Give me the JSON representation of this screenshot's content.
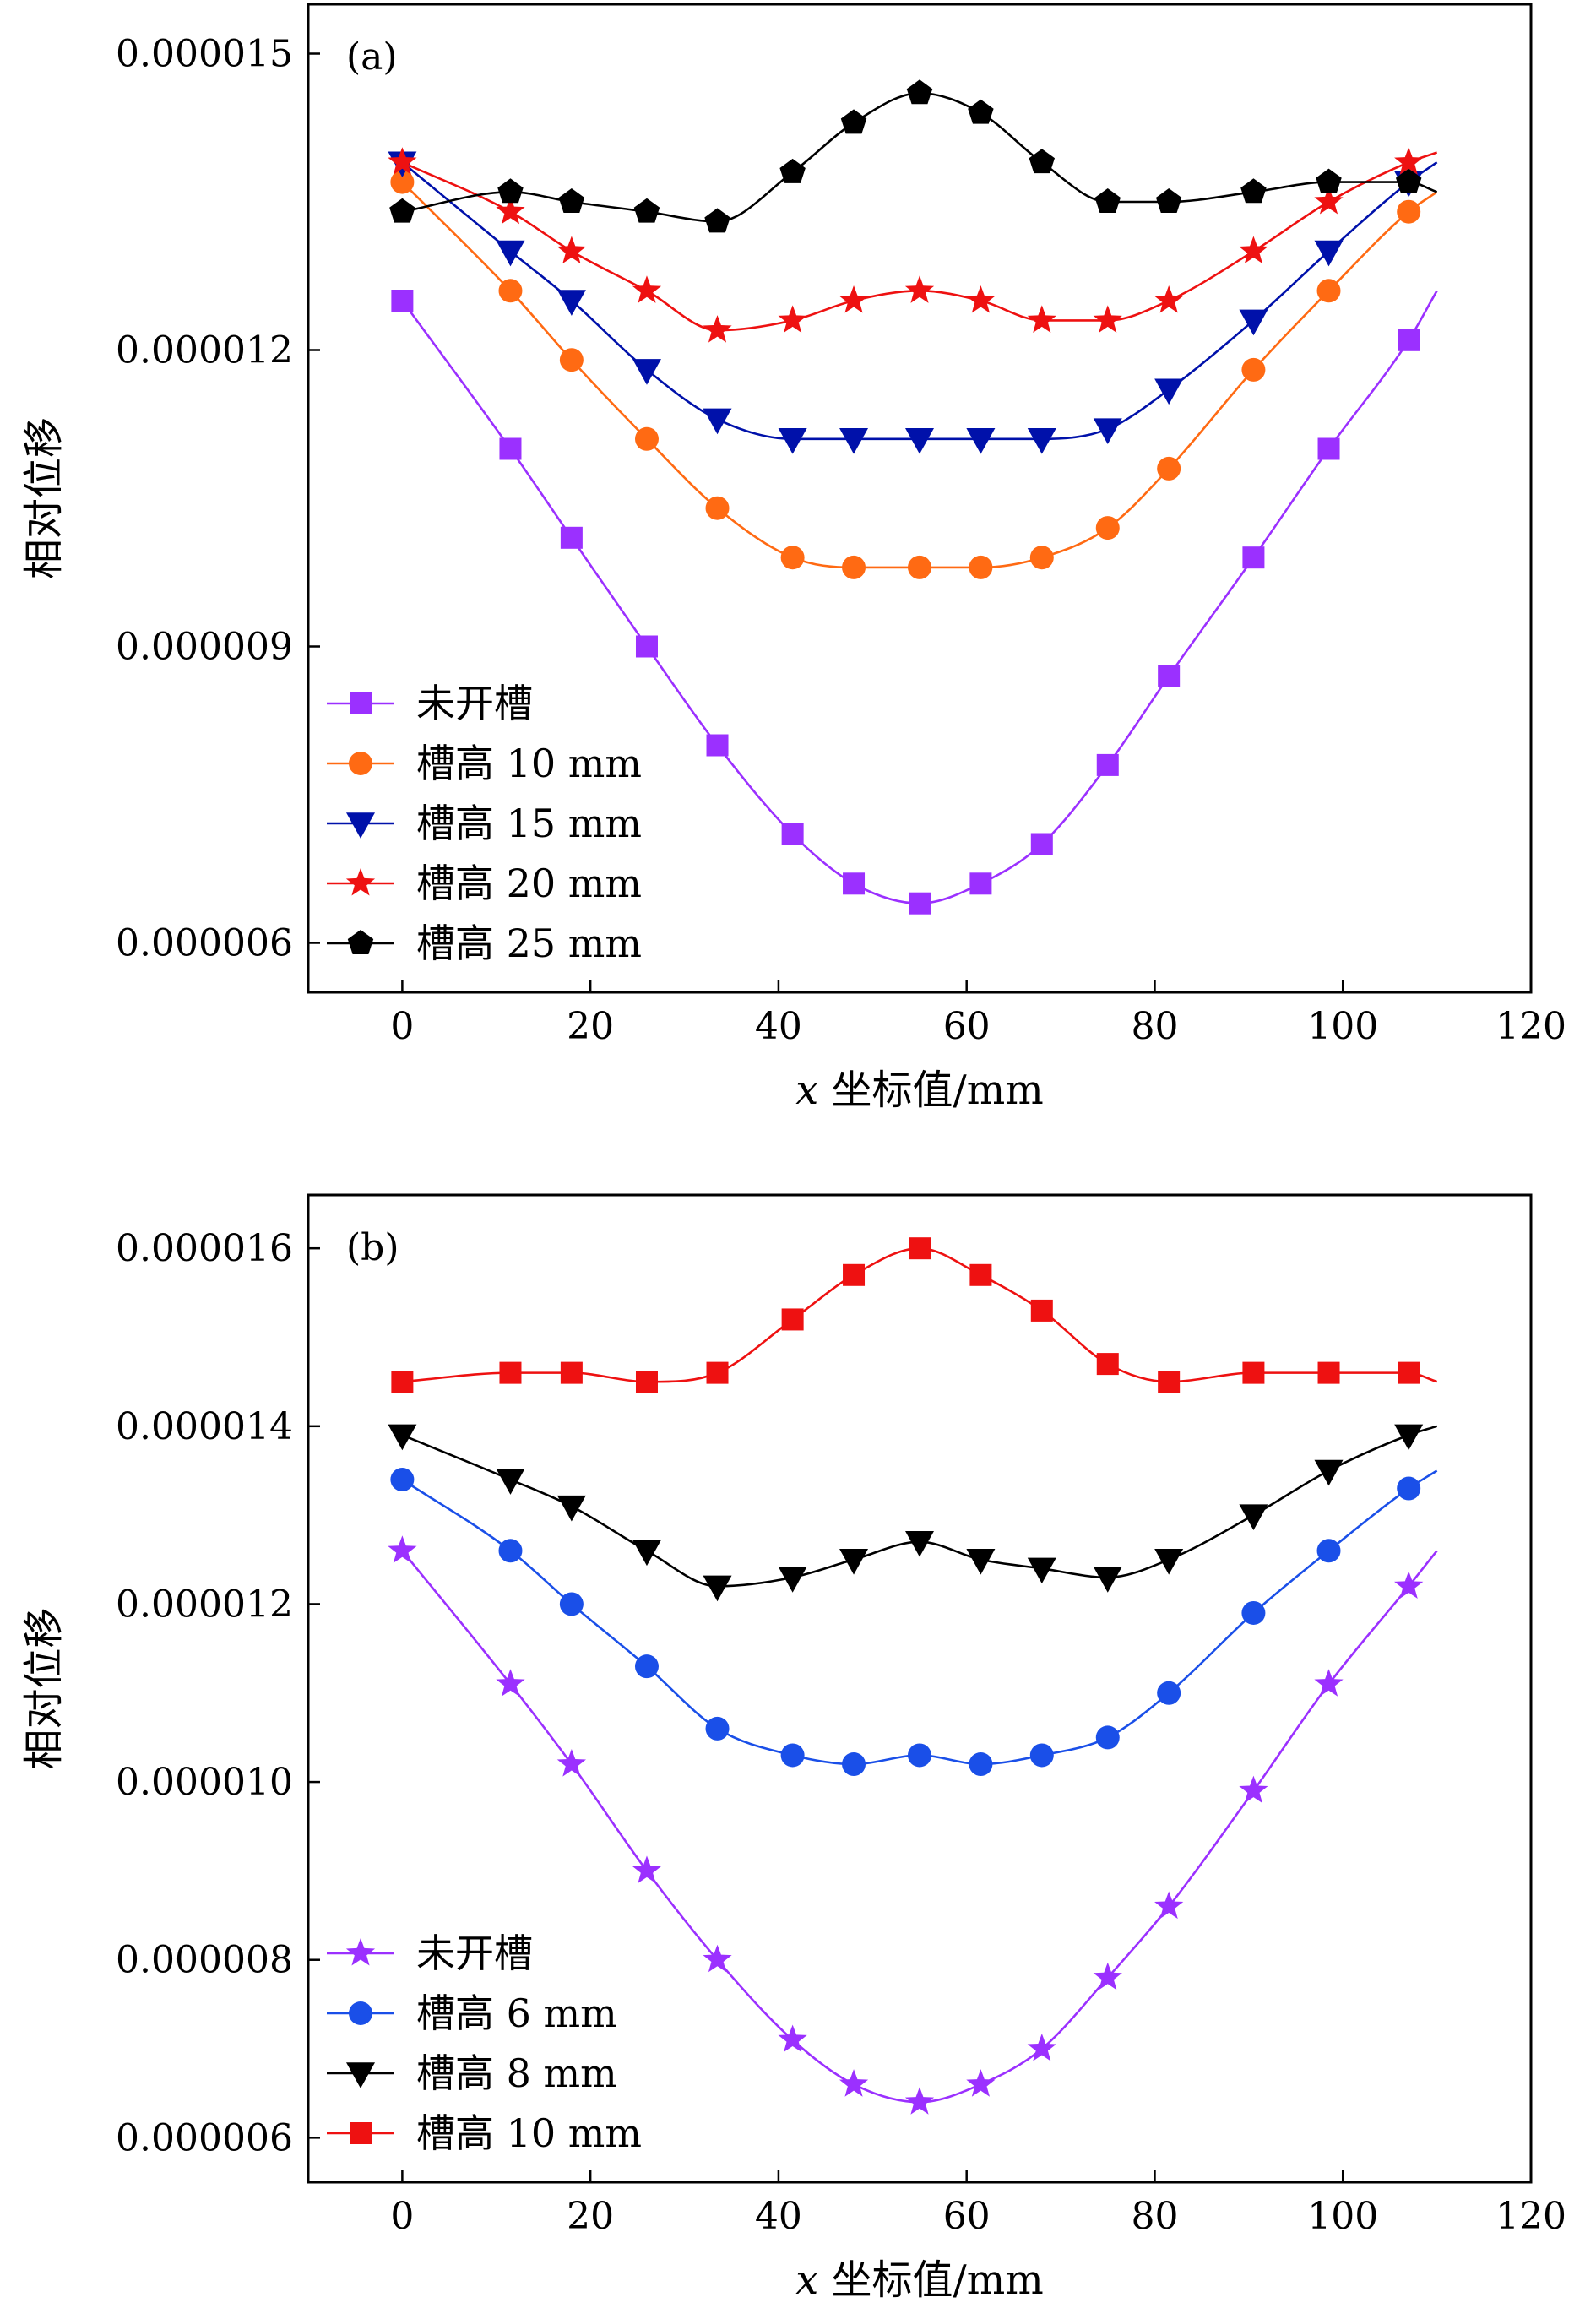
{
  "chart_data": [
    {
      "type": "line",
      "panel_label": "(a)",
      "xlabel_var": "x",
      "xlabel_rest": " 坐标值/mm",
      "ylabel": "相对位移",
      "xlim": [
        -10,
        120
      ],
      "ylim": [
        5.5e-06,
        1.55e-05
      ],
      "xticks": [
        0,
        20,
        40,
        60,
        80,
        100,
        120
      ],
      "yticks": [
        6e-06,
        9e-06,
        1.2e-05,
        1.5e-05
      ],
      "ytick_labels": [
        "0.000006",
        "0.000009",
        "0.000012",
        "0.000015"
      ],
      "legend_position": "lower-left",
      "x": [
        0,
        11.5,
        18,
        26,
        33.5,
        41.5,
        48,
        55,
        61.5,
        68,
        75,
        81.5,
        90.5,
        98.5,
        107
      ],
      "curve_end_x": 110,
      "series": [
        {
          "name": "未开槽",
          "color": "#9b30ff",
          "marker": "square",
          "values": [
            1.25e-05,
            1.1e-05,
            1.01e-05,
            9e-06,
            8e-06,
            7.1e-06,
            6.6e-06,
            6.4e-06,
            6.6e-06,
            7e-06,
            7.8e-06,
            8.7e-06,
            9.9e-06,
            1.1e-05,
            1.21e-05
          ],
          "end_value": 1.26e-05
        },
        {
          "name": "槽高 10 mm",
          "color": "#ff6a13",
          "marker": "circle",
          "values": [
            1.37e-05,
            1.26e-05,
            1.19e-05,
            1.11e-05,
            1.04e-05,
            9.9e-06,
            9.8e-06,
            9.8e-06,
            9.8e-06,
            9.9e-06,
            1.02e-05,
            1.08e-05,
            1.18e-05,
            1.26e-05,
            1.34e-05
          ],
          "end_value": 1.36e-05
        },
        {
          "name": "槽高 15 mm",
          "color": "#0011aa",
          "marker": "triangle-down",
          "values": [
            1.39e-05,
            1.3e-05,
            1.25e-05,
            1.18e-05,
            1.13e-05,
            1.11e-05,
            1.11e-05,
            1.11e-05,
            1.11e-05,
            1.11e-05,
            1.12e-05,
            1.16e-05,
            1.23e-05,
            1.3e-05,
            1.37e-05
          ],
          "end_value": 1.39e-05
        },
        {
          "name": "槽高 20 mm",
          "color": "#ee1111",
          "marker": "star",
          "values": [
            1.39e-05,
            1.34e-05,
            1.3e-05,
            1.26e-05,
            1.22e-05,
            1.23e-05,
            1.25e-05,
            1.26e-05,
            1.25e-05,
            1.23e-05,
            1.23e-05,
            1.25e-05,
            1.3e-05,
            1.35e-05,
            1.39e-05
          ],
          "end_value": 1.4e-05
        },
        {
          "name": "槽高 25 mm",
          "color": "#000000",
          "marker": "pentagon",
          "values": [
            1.34e-05,
            1.36e-05,
            1.35e-05,
            1.34e-05,
            1.33e-05,
            1.38e-05,
            1.43e-05,
            1.46e-05,
            1.44e-05,
            1.39e-05,
            1.35e-05,
            1.35e-05,
            1.36e-05,
            1.37e-05,
            1.37e-05
          ],
          "end_value": 1.36e-05
        }
      ]
    },
    {
      "type": "line",
      "panel_label": "(b)",
      "xlabel_var": "x",
      "xlabel_rest": " 坐标值/mm",
      "ylabel": "相对位移",
      "xlim": [
        -10,
        120
      ],
      "ylim": [
        5.5e-06,
        1.66e-05
      ],
      "xticks": [
        0,
        20,
        40,
        60,
        80,
        100,
        120
      ],
      "yticks": [
        6e-06,
        8e-06,
        1e-05,
        1.2e-05,
        1.4e-05,
        1.6e-05
      ],
      "ytick_labels": [
        "0.000006",
        "0.000008",
        "0.000010",
        "0.000012",
        "0.000014",
        "0.000016"
      ],
      "legend_position": "lower-left",
      "x": [
        0,
        11.5,
        18,
        26,
        33.5,
        41.5,
        48,
        55,
        61.5,
        68,
        75,
        81.5,
        90.5,
        98.5,
        107
      ],
      "curve_end_x": 110,
      "series": [
        {
          "name": "未开槽",
          "color": "#9b30ff",
          "marker": "star",
          "values": [
            1.26e-05,
            1.11e-05,
            1.02e-05,
            9e-06,
            8e-06,
            7.1e-06,
            6.6e-06,
            6.4e-06,
            6.6e-06,
            7e-06,
            7.8e-06,
            8.6e-06,
            9.9e-06,
            1.11e-05,
            1.22e-05
          ],
          "end_value": 1.26e-05
        },
        {
          "name": "槽高 6 mm",
          "color": "#1a4fe8",
          "marker": "circle",
          "values": [
            1.34e-05,
            1.26e-05,
            1.2e-05,
            1.13e-05,
            1.06e-05,
            1.03e-05,
            1.02e-05,
            1.03e-05,
            1.02e-05,
            1.03e-05,
            1.05e-05,
            1.1e-05,
            1.19e-05,
            1.26e-05,
            1.33e-05
          ],
          "end_value": 1.35e-05
        },
        {
          "name": "槽高 8 mm",
          "color": "#000000",
          "marker": "triangle-down",
          "values": [
            1.39e-05,
            1.34e-05,
            1.31e-05,
            1.26e-05,
            1.22e-05,
            1.23e-05,
            1.25e-05,
            1.27e-05,
            1.25e-05,
            1.24e-05,
            1.23e-05,
            1.25e-05,
            1.3e-05,
            1.35e-05,
            1.39e-05
          ],
          "end_value": 1.4e-05
        },
        {
          "name": "槽高 10 mm",
          "color": "#ee1111",
          "marker": "square",
          "values": [
            1.45e-05,
            1.46e-05,
            1.46e-05,
            1.45e-05,
            1.46e-05,
            1.52e-05,
            1.57e-05,
            1.6e-05,
            1.57e-05,
            1.53e-05,
            1.47e-05,
            1.45e-05,
            1.46e-05,
            1.46e-05,
            1.46e-05
          ],
          "end_value": 1.45e-05
        }
      ]
    }
  ]
}
